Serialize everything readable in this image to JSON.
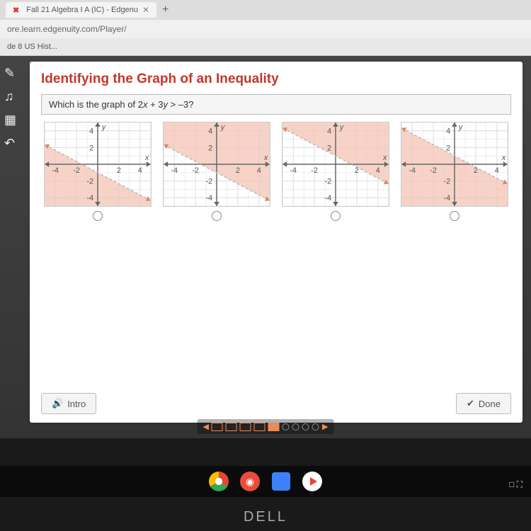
{
  "browser": {
    "tab_title": "Fall 21 Algebra I A (IC) - Edgenu",
    "url": "ore.learn.edgenuity.com/Player/",
    "bookmark": "de 8 US Hist..."
  },
  "lesson": {
    "title": "Identifying the Graph of an Inequality",
    "question": "Which is the graph of 2x + 3y > –3?"
  },
  "graphs": {
    "xlim": [
      -5,
      5
    ],
    "ylim": [
      -5,
      5
    ],
    "xticks": [
      -4,
      -2,
      2,
      4
    ],
    "yticks": [
      -4,
      -2,
      2,
      4
    ],
    "x_label": "x",
    "y_label": "y",
    "grid_color": "#dddddd",
    "axis_color": "#666666",
    "line_color": "#b9b9b9",
    "line_dashed": true,
    "shade_color": "#f4c4b4",
    "shade_opacity": 0.75,
    "arrow_color": "#d9866a",
    "label_color": "#555555",
    "label_fontsize": 11,
    "options": [
      {
        "shade_side": "below",
        "line_p1": [
          -5,
          2.333
        ],
        "line_p2": [
          5,
          -4.333
        ]
      },
      {
        "shade_side": "above",
        "line_p1": [
          -5,
          2.333
        ],
        "line_p2": [
          5,
          -4.333
        ]
      },
      {
        "shade_side": "above",
        "line_p1": [
          -5,
          4.333
        ],
        "line_p2": [
          5,
          -2.333
        ]
      },
      {
        "shade_side": "below",
        "line_p1": [
          -5,
          4.333
        ],
        "line_p2": [
          5,
          -2.333
        ]
      }
    ]
  },
  "buttons": {
    "intro": "Intro",
    "done": "Done"
  },
  "pager": {
    "total": 9,
    "squares": 5,
    "current": 4
  },
  "brand": "DELL",
  "tray": "□ ⛶"
}
